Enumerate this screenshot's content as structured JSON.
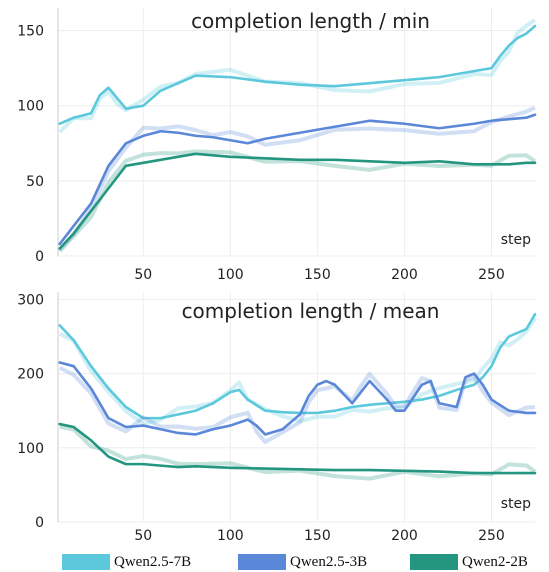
{
  "legend": [
    {
      "label": "Qwen2.5-7B",
      "color": "#5bc8dc"
    },
    {
      "label": "Qwen2.5-3B",
      "color": "#5b87d8"
    },
    {
      "label": "Qwen2-2B",
      "color": "#24967f"
    }
  ],
  "chart_data": [
    {
      "type": "line",
      "title": "completion length / min",
      "xlabel": "step",
      "ylabel": "",
      "xlim": [
        1,
        275
      ],
      "ylim": [
        0,
        165
      ],
      "x_ticks": [
        50,
        100,
        150,
        200,
        250
      ],
      "y_ticks": [
        0,
        50,
        100,
        150
      ],
      "grid": true,
      "series": [
        {
          "name": "Qwen2.5-7B",
          "color": "#5bc8dc",
          "x": [
            2,
            10,
            20,
            25,
            30,
            35,
            40,
            50,
            60,
            70,
            80,
            100,
            120,
            140,
            160,
            180,
            200,
            220,
            240,
            250,
            255,
            260,
            265,
            270,
            275
          ],
          "values": [
            88,
            92,
            95,
            107,
            112,
            105,
            98,
            100,
            110,
            115,
            120,
            119,
            116,
            114,
            113,
            115,
            117,
            119,
            123,
            125,
            133,
            140,
            145,
            148,
            153
          ]
        },
        {
          "name": "Qwen2.5-3B",
          "color": "#5b87d8",
          "x": [
            2,
            10,
            20,
            30,
            40,
            50,
            60,
            70,
            80,
            90,
            100,
            110,
            120,
            140,
            160,
            180,
            200,
            220,
            240,
            250,
            260,
            270,
            275
          ],
          "values": [
            8,
            20,
            35,
            60,
            75,
            80,
            83,
            82,
            80,
            79,
            77,
            75,
            78,
            82,
            86,
            90,
            88,
            85,
            88,
            90,
            91,
            92,
            94
          ]
        },
        {
          "name": "Qwen2-2B",
          "color": "#24967f",
          "x": [
            2,
            10,
            20,
            30,
            40,
            50,
            60,
            70,
            80,
            100,
            120,
            140,
            160,
            180,
            200,
            220,
            240,
            250,
            260,
            270,
            275
          ],
          "values": [
            5,
            15,
            30,
            45,
            60,
            62,
            64,
            66,
            68,
            66,
            65,
            64,
            64,
            63,
            62,
            63,
            61,
            61,
            61,
            62,
            62
          ]
        }
      ]
    },
    {
      "type": "line",
      "title": "completion length / mean",
      "xlabel": "step",
      "ylabel": "",
      "xlim": [
        1,
        275
      ],
      "ylim": [
        0,
        310
      ],
      "x_ticks": [
        50,
        100,
        150,
        200,
        250
      ],
      "y_ticks": [
        0,
        100,
        200,
        300
      ],
      "grid": true,
      "series": [
        {
          "name": "Qwen2.5-7B",
          "color": "#5bc8dc",
          "x": [
            2,
            10,
            20,
            30,
            40,
            50,
            60,
            70,
            80,
            90,
            100,
            105,
            110,
            120,
            130,
            140,
            150,
            160,
            170,
            180,
            190,
            200,
            210,
            220,
            230,
            240,
            245,
            250,
            255,
            260,
            265,
            270,
            275
          ],
          "values": [
            265,
            245,
            210,
            180,
            155,
            140,
            140,
            145,
            150,
            160,
            175,
            178,
            165,
            150,
            148,
            147,
            147,
            150,
            155,
            158,
            160,
            162,
            165,
            170,
            178,
            185,
            195,
            210,
            235,
            250,
            255,
            260,
            280
          ]
        },
        {
          "name": "Qwen2.5-3B",
          "color": "#5b87d8",
          "x": [
            2,
            10,
            20,
            30,
            40,
            50,
            60,
            70,
            80,
            90,
            100,
            110,
            115,
            120,
            130,
            140,
            145,
            150,
            155,
            160,
            170,
            175,
            180,
            190,
            195,
            200,
            210,
            215,
            220,
            230,
            235,
            240,
            245,
            250,
            260,
            270,
            275
          ],
          "values": [
            215,
            210,
            180,
            140,
            128,
            130,
            125,
            120,
            118,
            125,
            130,
            138,
            130,
            118,
            125,
            145,
            170,
            185,
            190,
            185,
            160,
            175,
            190,
            165,
            150,
            150,
            185,
            190,
            160,
            155,
            195,
            200,
            185,
            165,
            150,
            147,
            147
          ]
        },
        {
          "name": "Qwen2-2B",
          "color": "#24967f",
          "x": [
            2,
            10,
            20,
            30,
            40,
            50,
            60,
            70,
            80,
            100,
            120,
            140,
            160,
            180,
            200,
            220,
            240,
            250,
            260,
            270,
            275
          ],
          "values": [
            132,
            128,
            110,
            88,
            78,
            78,
            76,
            74,
            75,
            73,
            72,
            71,
            70,
            70,
            69,
            68,
            66,
            66,
            66,
            66,
            66
          ]
        }
      ]
    }
  ]
}
